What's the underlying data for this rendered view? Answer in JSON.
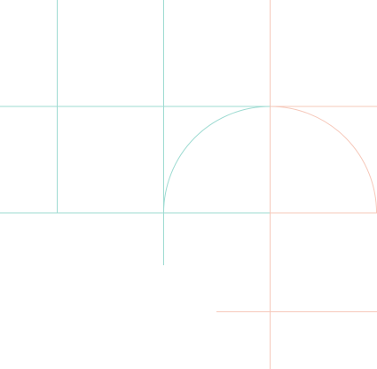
{
  "colors": {
    "teal": "#9edbd2",
    "salmon": "#f6c8ba",
    "background": "#ffffff"
  }
}
